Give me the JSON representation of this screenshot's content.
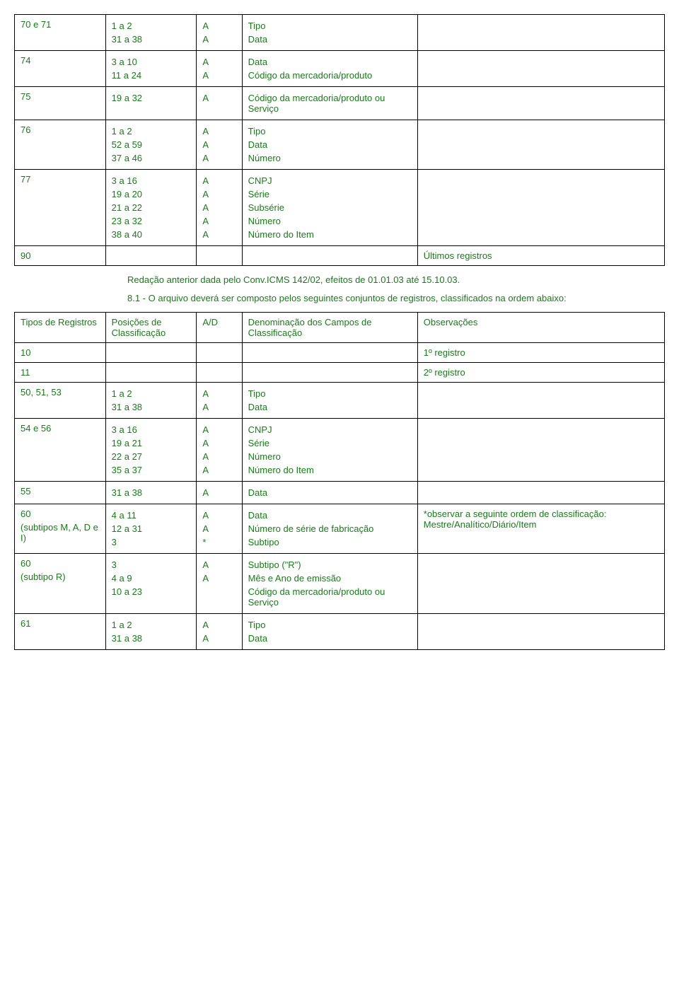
{
  "colors": {
    "text": "#1a7a1a",
    "border": "#000000",
    "background": "#ffffff"
  },
  "table1": {
    "rows": [
      {
        "c1": "70 e 71",
        "c2": [
          "1 a 2",
          "31 a 38"
        ],
        "c3": [
          "A",
          "A"
        ],
        "c4": [
          "Tipo",
          "Data"
        ],
        "c5": ""
      },
      {
        "c1": "74",
        "c2": [
          "3 a 10",
          "11 a 24"
        ],
        "c3": [
          "A",
          "A"
        ],
        "c4": [
          "Data",
          "Código da mercadoria/produto"
        ],
        "c5": ""
      },
      {
        "c1": "75",
        "c2": [
          "19 a 32"
        ],
        "c3": [
          "A"
        ],
        "c4": [
          "Código da mercadoria/produto ou Serviço"
        ],
        "c5": ""
      },
      {
        "c1": "76",
        "c2": [
          "1 a 2",
          "52 a 59",
          "37 a 46"
        ],
        "c3": [
          "A",
          "A",
          "A"
        ],
        "c4": [
          "Tipo",
          "Data",
          "Número"
        ],
        "c5": ""
      },
      {
        "c1": "77",
        "c2": [
          "3 a 16",
          "19 a 20",
          "21 a 22",
          "23 a 32",
          "38 a 40"
        ],
        "c3": [
          "A",
          "A",
          "A",
          "A",
          "A"
        ],
        "c4": [
          "CNPJ",
          "Série",
          "Subsérie",
          "Número",
          "Número do Item"
        ],
        "c5": ""
      },
      {
        "c1": "90",
        "c2": [],
        "c3": [],
        "c4": [],
        "c5": "Últimos registros"
      }
    ]
  },
  "mid_text": {
    "line1": "Redação anterior dada pelo Conv.ICMS 142/02, efeitos de 01.01.03 até 15.10.03.",
    "line2": "8.1 - O arquivo deverá ser composto pelos seguintes conjuntos de registros, classificados na ordem abaixo:"
  },
  "table2": {
    "header": {
      "c1": "Tipos de Registros",
      "c2": "Posições de Classificação",
      "c3": "A/D",
      "c4": "Denominação dos Campos de Classificação",
      "c5": "Observações"
    },
    "rows": [
      {
        "c1": "10",
        "c2": [],
        "c3": [],
        "c4": [],
        "c5": "1º registro"
      },
      {
        "c1": "11",
        "c2": [],
        "c3": [],
        "c4": [],
        "c5": "2º registro"
      },
      {
        "c1": "50, 51, 53",
        "c2": [
          "1 a 2",
          "31 a 38"
        ],
        "c3": [
          "A",
          "A"
        ],
        "c4": [
          "Tipo",
          "Data"
        ],
        "c5": ""
      },
      {
        "c1": "54 e 56",
        "c2": [
          "3 a 16",
          "19 a 21",
          "22 a 27",
          "35 a 37"
        ],
        "c3": [
          "A",
          "A",
          "A",
          "A"
        ],
        "c4": [
          "CNPJ",
          "Série",
          "Número",
          "Número do Item"
        ],
        "c5": ""
      },
      {
        "c1": "55",
        "c2": [
          "31 a 38"
        ],
        "c3": [
          "A"
        ],
        "c4": [
          "Data"
        ],
        "c5": ""
      },
      {
        "c1": "60\n(subtipos M, A, D e I)",
        "c2": [
          "4 a 11",
          "12 a 31",
          "3"
        ],
        "c3": [
          "A",
          "A",
          "*"
        ],
        "c4": [
          "Data",
          "Número de série de fabricação",
          "Subtipo"
        ],
        "c5": "*observar a seguinte ordem de classificação: Mestre/Analítico/Diário/Item"
      },
      {
        "c1": "60\n(subtipo R)",
        "c2": [
          "3",
          "4 a 9",
          "10 a 23"
        ],
        "c3": [
          "A",
          "A"
        ],
        "c4": [
          "Subtipo (\"R\")",
          "Mês e Ano de emissão",
          "Código da mercadoria/produto ou Serviço"
        ],
        "c5": ""
      },
      {
        "c1": "61",
        "c2": [
          "1 a 2",
          "31 a 38"
        ],
        "c3": [
          "A",
          "A"
        ],
        "c4": [
          "Tipo",
          "Data"
        ],
        "c5": ""
      }
    ]
  }
}
